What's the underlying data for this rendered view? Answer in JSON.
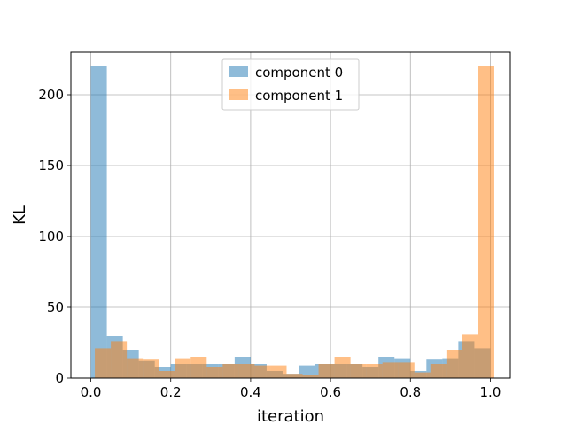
{
  "chart_data": {
    "type": "bar",
    "xlabel": "iteration",
    "ylabel": "KL",
    "xlim": [
      -0.05,
      1.05
    ],
    "ylim": [
      0,
      230
    ],
    "grid": true,
    "legend_position": "top-center",
    "x_ticks": [
      "0.0",
      "0.2",
      "0.4",
      "0.6",
      "0.8",
      "1.0"
    ],
    "y_ticks": [
      "0",
      "50",
      "100",
      "150",
      "200"
    ],
    "bin_edges": [
      0.0,
      0.04,
      0.08,
      0.12,
      0.16,
      0.2,
      0.24,
      0.28,
      0.32,
      0.36,
      0.4,
      0.44,
      0.48,
      0.52,
      0.56,
      0.6,
      0.64,
      0.68,
      0.72,
      0.76,
      0.8,
      0.84,
      0.88,
      0.92,
      0.96,
      1.0
    ],
    "series": [
      {
        "name": "component 0",
        "color": "#1f77b4",
        "bin_start": 0.0,
        "bin_width": 0.04,
        "values": [
          220,
          30,
          20,
          12,
          8,
          10,
          10,
          10,
          10,
          15,
          10,
          5,
          3,
          9,
          10,
          10,
          10,
          8,
          15,
          14,
          5,
          13,
          14,
          26,
          21
        ]
      },
      {
        "name": "component 1",
        "color": "#ff7f0e",
        "bin_start": 0.01,
        "bin_width": 0.04,
        "values": [
          21,
          26,
          14,
          13,
          5,
          14,
          15,
          8,
          10,
          10,
          9,
          9,
          3,
          2,
          10,
          15,
          10,
          10,
          11,
          11,
          4,
          10,
          20,
          31,
          220
        ]
      }
    ]
  }
}
